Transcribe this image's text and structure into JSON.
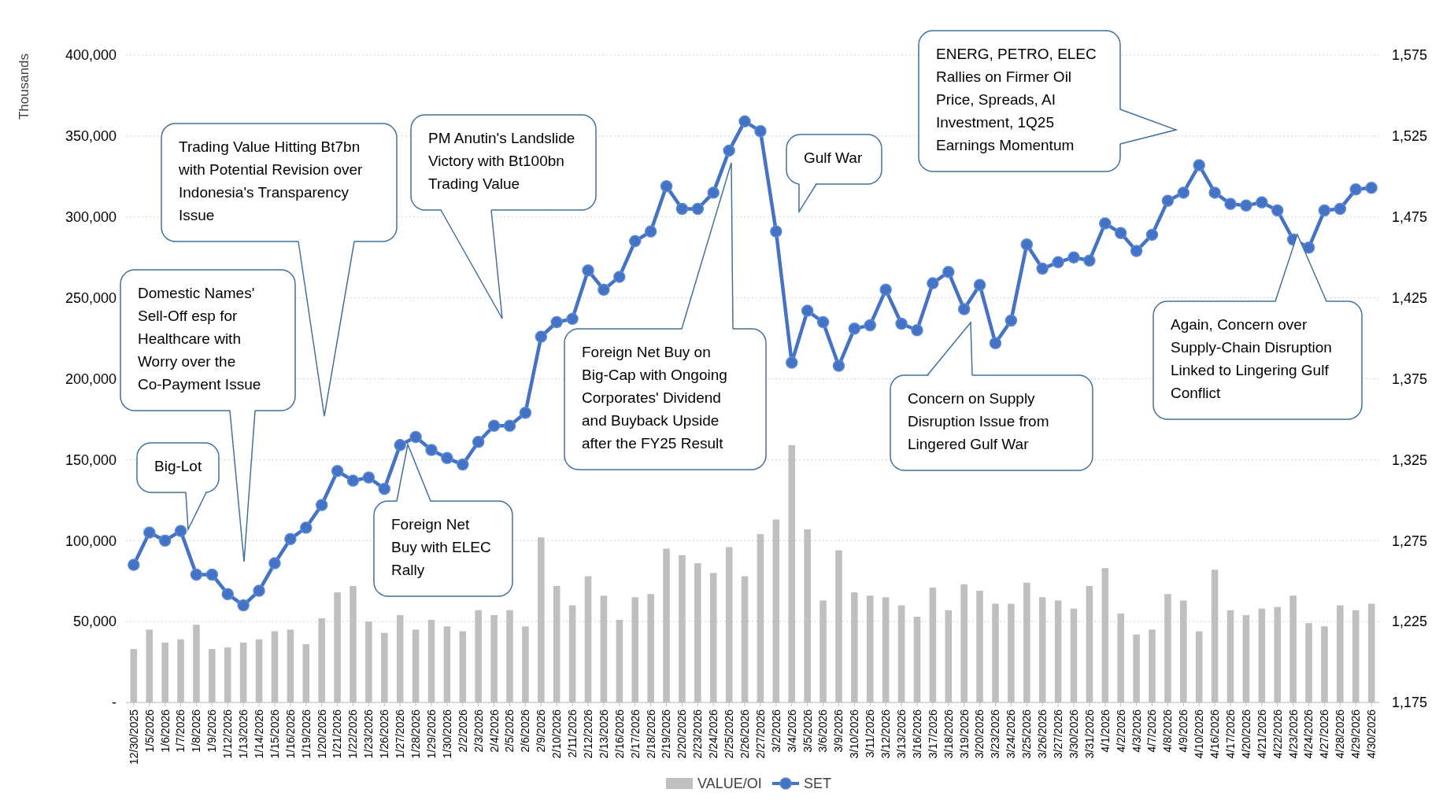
{
  "chart_data": {
    "type": "bar",
    "ylabel": "Thousands",
    "categories": [
      "12/30/2025",
      "1/5/2026",
      "1/6/2026",
      "1/7/2026",
      "1/8/2026",
      "1/9/2026",
      "1/12/2026",
      "1/13/2026",
      "1/14/2026",
      "1/15/2026",
      "1/16/2026",
      "1/19/2026",
      "1/20/2026",
      "1/21/2026",
      "1/22/2026",
      "1/23/2026",
      "1/26/2026",
      "1/27/2026",
      "1/28/2026",
      "1/29/2026",
      "1/30/2026",
      "2/2/2026",
      "2/3/2026",
      "2/4/2026",
      "2/5/2026",
      "2/6/2026",
      "2/9/2026",
      "2/10/2026",
      "2/11/2026",
      "2/12/2026",
      "2/13/2026",
      "2/16/2026",
      "2/17/2026",
      "2/18/2026",
      "2/19/2026",
      "2/20/2026",
      "2/23/2026",
      "2/24/2026",
      "2/25/2026",
      "2/26/2026",
      "2/27/2026",
      "3/2/2026",
      "3/4/2026",
      "3/5/2026",
      "3/6/2026",
      "3/9/2026",
      "3/10/2026",
      "3/11/2026",
      "3/12/2026",
      "3/13/2026",
      "3/16/2026",
      "3/17/2026",
      "3/18/2026",
      "3/19/2026",
      "3/20/2026",
      "3/23/2026",
      "3/24/2026",
      "3/25/2026",
      "3/26/2026",
      "3/27/2026",
      "3/30/2026",
      "3/31/2026",
      "4/1/2026",
      "4/2/2026",
      "4/3/2026",
      "4/7/2026",
      "4/8/2026",
      "4/9/2026",
      "4/10/2026",
      "4/16/2026",
      "4/17/2026",
      "4/20/2026",
      "4/21/2026",
      "4/22/2026",
      "4/23/2026",
      "4/24/2026",
      "4/27/2026",
      "4/28/2026",
      "4/29/2026",
      "4/30/2026"
    ],
    "series": [
      {
        "name": "VALUE/OI",
        "color": "#bfbfbf",
        "values": [
          33000,
          45000,
          37000,
          39000,
          48000,
          33000,
          34000,
          37000,
          39000,
          44000,
          45000,
          36000,
          52000,
          68000,
          72000,
          50000,
          43000,
          54000,
          45000,
          51000,
          47000,
          44000,
          57000,
          54000,
          57000,
          47000,
          102000,
          72000,
          60000,
          78000,
          66000,
          51000,
          65000,
          67000,
          95000,
          91000,
          86000,
          80000,
          96000,
          78000,
          104000,
          113000,
          159000,
          107000,
          63000,
          94000,
          68000,
          66000,
          65000,
          60000,
          53000,
          71000,
          57000,
          73000,
          69000,
          61000,
          61000,
          74000,
          65000,
          63000,
          58000,
          72000,
          83000,
          55000,
          42000,
          45000,
          67000,
          63000,
          44000,
          82000,
          57000,
          54000,
          58000,
          59000,
          66000,
          49000,
          47000,
          60000,
          57000,
          61000
        ]
      },
      {
        "name": "SET",
        "type": "line",
        "axis": "y2",
        "color": "#4472c4",
        "values": [
          1260,
          1280,
          1275,
          1281,
          1254,
          1254,
          1242,
          1235,
          1244,
          1261,
          1276,
          1283,
          1297,
          1318,
          1312,
          1314,
          1307,
          1334,
          1339,
          1331,
          1326,
          1322,
          1336,
          1346,
          1346,
          1354,
          1401,
          1410,
          1412,
          1442,
          1430,
          1438,
          1460,
          1466,
          1494,
          1480,
          1480,
          1490,
          1516,
          1534,
          1528,
          1466,
          1385,
          1417,
          1410,
          1383,
          1406,
          1408,
          1430,
          1409,
          1405,
          1434,
          1441,
          1418,
          1433,
          1397,
          1411,
          1458,
          1443,
          1447,
          1450,
          1448,
          1471,
          1465,
          1454,
          1464,
          1485,
          1490,
          1507,
          1490,
          1483,
          1482,
          1484,
          1479,
          1461,
          1456,
          1479,
          1480,
          1492,
          1493
        ]
      }
    ],
    "ylim": [
      0,
      400000
    ],
    "yticks": [
      {
        "value": 0,
        "label": "-"
      },
      {
        "value": 50000,
        "label": "50,000"
      },
      {
        "value": 100000,
        "label": "100,000"
      },
      {
        "value": 150000,
        "label": "150,000"
      },
      {
        "value": 200000,
        "label": "200,000"
      },
      {
        "value": 250000,
        "label": "250,000"
      },
      {
        "value": 300000,
        "label": "300,000"
      },
      {
        "value": 350000,
        "label": "350,000"
      },
      {
        "value": 400000,
        "label": "400,000"
      }
    ],
    "y2lim": [
      1175,
      1575
    ],
    "y2ticks": [
      {
        "value": 1175,
        "label": "1,175"
      },
      {
        "value": 1225,
        "label": "1,225"
      },
      {
        "value": 1275,
        "label": "1,275"
      },
      {
        "value": 1325,
        "label": "1,325"
      },
      {
        "value": 1375,
        "label": "1,375"
      },
      {
        "value": 1425,
        "label": "1,425"
      },
      {
        "value": 1475,
        "label": "1,475"
      },
      {
        "value": 1525,
        "label": "1,525"
      },
      {
        "value": 1575,
        "label": "1,575"
      }
    ],
    "grid": "y",
    "legend": "bottom",
    "marker": "circle",
    "annotations": [
      "Big-Lot",
      "Domestic Names' Sell-Off esp for Healthcare with Worry over the Co-Payment Issue",
      "Trading Value Hitting Bt7bn with Potential Revision over Indonesia's Transparency Issue",
      "PM Anutin's Landslide Victory with Bt100bn Trading Value",
      "Foreign Net Buy with ELEC Rally",
      "Foreign Net Buy on Big-Cap with Ongoing Corporates' Dividend and Buyback Upside after the FY25 Result",
      "Gulf War",
      "ENERG, PETRO, ELEC Rallies on Firmer Oil Price, Spreads, AI Investment, 1Q25 Earnings Momentum",
      "Concern on Supply Disruption Issue from Lingered Gulf War",
      "Again, Concern over Supply-Chain Disruption Linked to Lingering Gulf Conflict"
    ]
  }
}
